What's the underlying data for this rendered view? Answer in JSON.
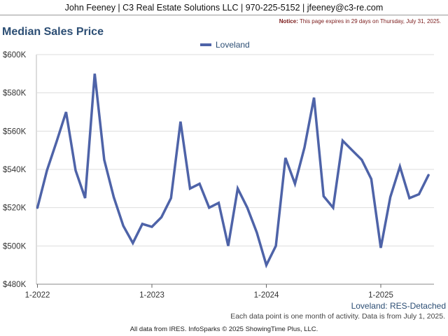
{
  "header": {
    "banner": "John Feeney | C3 Real Estate Solutions LLC | 970-225-5152 | jfeeney@c3-re.com",
    "notice_label": "Notice:",
    "notice_text": "This page expires in 29 days on Thursday, July 31, 2025."
  },
  "footer": {
    "series_note": "Loveland: RES-Detached",
    "activity_note": "Each data point is one month of activity. Data is from July 1, 2025.",
    "credit": "All data from IRES. InfoSparks © 2025 ShowingTime Plus, LLC."
  },
  "chart_data": {
    "type": "line",
    "title": "Median Sales Price",
    "xlabel": "",
    "ylabel": "",
    "ylim": [
      480000,
      600000
    ],
    "y_ticks": [
      "$480K",
      "$500K",
      "$520K",
      "$540K",
      "$560K",
      "$580K",
      "$600K"
    ],
    "x_ticks": [
      "1-2022",
      "1-2023",
      "1-2024",
      "1-2025"
    ],
    "grid": true,
    "legend_position": "top-center",
    "colors": {
      "series": "#4e63a8",
      "grid": "#dddddd",
      "title": "#2c4e74"
    },
    "x": [
      "2022-01",
      "2022-02",
      "2022-03",
      "2022-04",
      "2022-05",
      "2022-06",
      "2022-07",
      "2022-08",
      "2022-09",
      "2022-10",
      "2022-11",
      "2022-12",
      "2023-01",
      "2023-02",
      "2023-03",
      "2023-04",
      "2023-05",
      "2023-06",
      "2023-07",
      "2023-08",
      "2023-09",
      "2023-10",
      "2023-11",
      "2023-12",
      "2024-01",
      "2024-02",
      "2024-03",
      "2024-04",
      "2024-05",
      "2024-06",
      "2024-07",
      "2024-08",
      "2024-09",
      "2024-10",
      "2024-11",
      "2024-12",
      "2025-01",
      "2025-02",
      "2025-03",
      "2025-04",
      "2025-05",
      "2025-06"
    ],
    "series": [
      {
        "name": "Loveland",
        "values": [
          520000,
          539500,
          554500,
          570000,
          539500,
          525000,
          590000,
          545000,
          525500,
          510500,
          501500,
          511500,
          510000,
          515000,
          525000,
          565000,
          530000,
          532500,
          520000,
          522500,
          500000,
          530000,
          520000,
          507000,
          490000,
          500000,
          546000,
          532500,
          551500,
          577500,
          526000,
          520000,
          555000,
          550000,
          545000,
          535000,
          499000,
          525500,
          541500,
          525000,
          527000,
          537000
        ]
      }
    ]
  }
}
